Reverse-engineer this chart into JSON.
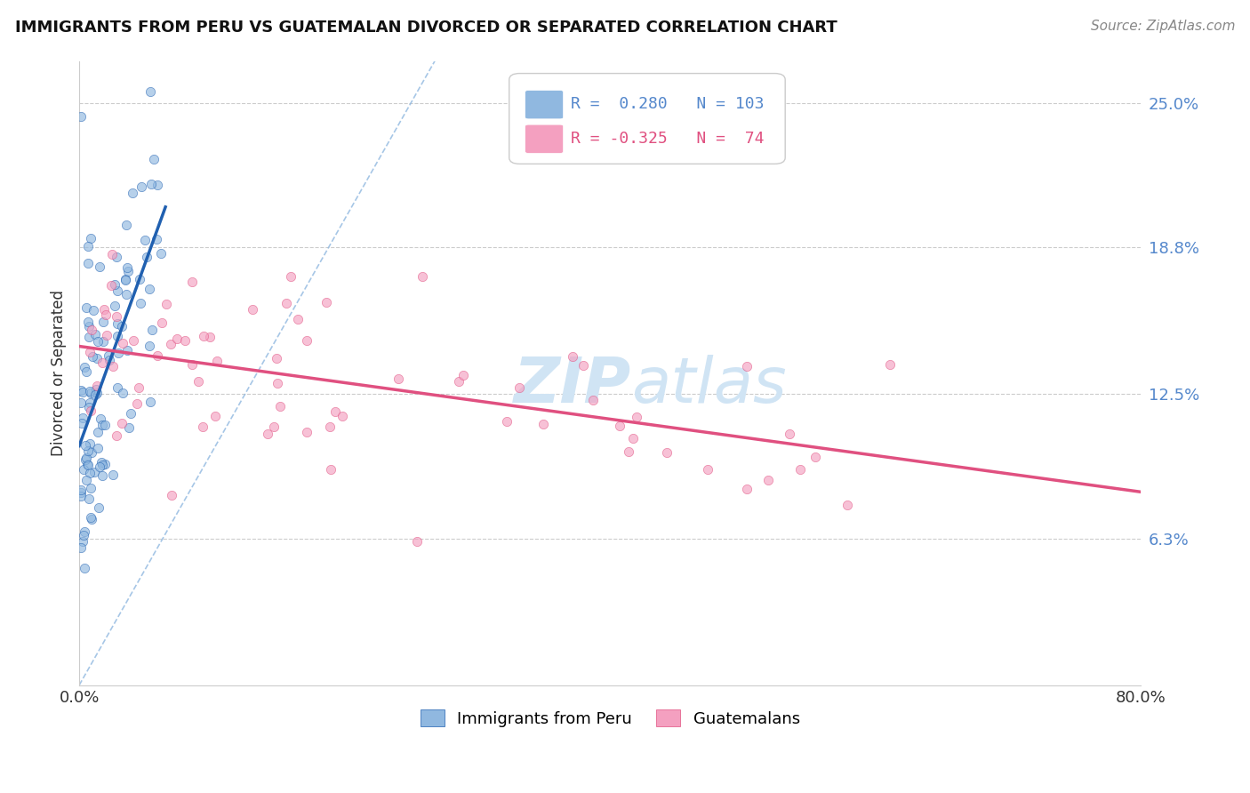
{
  "title": "IMMIGRANTS FROM PERU VS GUATEMALAN DIVORCED OR SEPARATED CORRELATION CHART",
  "source": "Source: ZipAtlas.com",
  "ylabel": "Divorced or Separated",
  "ytick_labels": [
    "6.3%",
    "12.5%",
    "18.8%",
    "25.0%"
  ],
  "ytick_values": [
    0.063,
    0.125,
    0.188,
    0.25
  ],
  "xlim": [
    0.0,
    0.8
  ],
  "ylim": [
    0.0,
    0.268
  ],
  "legend_blue_r": "0.280",
  "legend_blue_n": "103",
  "legend_pink_r": "-0.325",
  "legend_pink_n": "74",
  "blue_color": "#90b8e0",
  "pink_color": "#f4a0c0",
  "blue_line_color": "#2060b0",
  "pink_line_color": "#e05080",
  "ref_line_color": "#90b8e0",
  "watermark_color": "#d0e4f4"
}
